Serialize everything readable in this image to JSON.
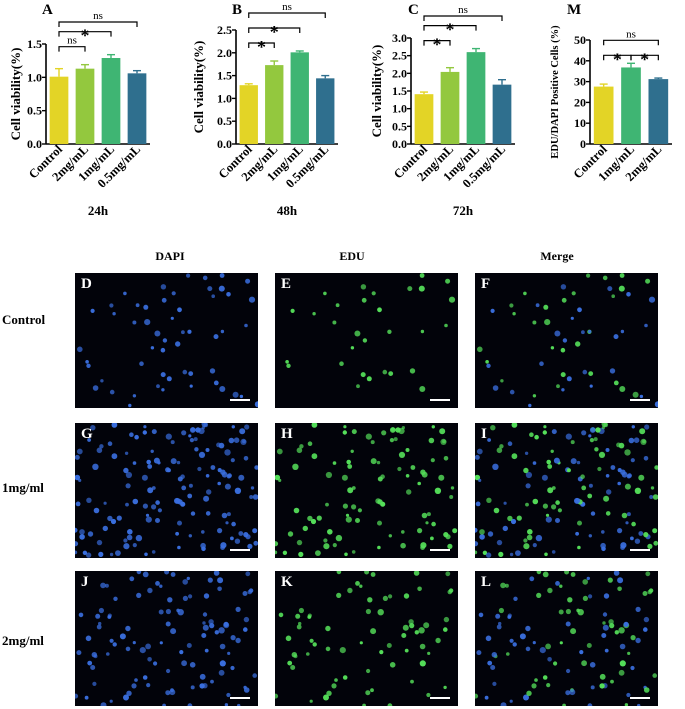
{
  "chart_data": [
    {
      "panel": "A",
      "type": "bar",
      "categories": [
        "Control",
        "2mg/mL",
        "1mg/mL",
        "0.5mg/mL"
      ],
      "values": [
        1.01,
        1.13,
        1.29,
        1.06
      ],
      "errors": [
        0.12,
        0.06,
        0.05,
        0.04
      ],
      "colors": [
        "#e3d426",
        "#93c83e",
        "#3fb573",
        "#2f6f8e"
      ],
      "ylabel": "Cell viability(%)",
      "xlabel": "24h",
      "ylim": [
        0,
        1.5
      ],
      "yticks": [
        "0.0",
        "0.5",
        "1.0",
        "1.5"
      ],
      "ytick_values": [
        0,
        0.5,
        1.0,
        1.5
      ],
      "significance": [
        {
          "from": 0,
          "to": 1,
          "label": "ns"
        },
        {
          "from": 0,
          "to": 2,
          "label": "*"
        },
        {
          "from": 0,
          "to": 3,
          "label": "ns"
        }
      ]
    },
    {
      "panel": "B",
      "type": "bar",
      "categories": [
        "Control",
        "2mg/mL",
        "1mg/mL",
        "0.5mg/mL"
      ],
      "values": [
        1.29,
        1.73,
        2.01,
        1.44
      ],
      "errors": [
        0.03,
        0.09,
        0.03,
        0.06
      ],
      "colors": [
        "#e3d426",
        "#93c83e",
        "#3fb573",
        "#2f6f8e"
      ],
      "ylabel": "Cell viability(%)",
      "xlabel": "48h",
      "ylim": [
        0,
        2.5
      ],
      "yticks": [
        "0.0",
        "0.5",
        "1.0",
        "1.5",
        "2.0",
        "2.5"
      ],
      "ytick_values": [
        0,
        0.5,
        1.0,
        1.5,
        2.0,
        2.5
      ],
      "significance": [
        {
          "from": 0,
          "to": 1,
          "label": "*"
        },
        {
          "from": 0,
          "to": 2,
          "label": "*"
        },
        {
          "from": 0,
          "to": 3,
          "label": "ns"
        }
      ]
    },
    {
      "panel": "C",
      "type": "bar",
      "categories": [
        "Control",
        "2mg/mL",
        "1mg/mL",
        "0.5mg/mL"
      ],
      "values": [
        1.41,
        2.04,
        2.6,
        1.68
      ],
      "errors": [
        0.06,
        0.12,
        0.1,
        0.14
      ],
      "colors": [
        "#e3d426",
        "#93c83e",
        "#3fb573",
        "#2f6f8e"
      ],
      "ylabel": "Cell viability(%)",
      "xlabel": "72h",
      "ylim": [
        0,
        3.0
      ],
      "yticks": [
        "0.0",
        "0.5",
        "1.0",
        "1.5",
        "2.0",
        "2.5",
        "3.0"
      ],
      "ytick_values": [
        0,
        0.5,
        1.0,
        1.5,
        2.0,
        2.5,
        3.0
      ],
      "significance": [
        {
          "from": 0,
          "to": 1,
          "label": "*"
        },
        {
          "from": 0,
          "to": 2,
          "label": "*"
        },
        {
          "from": 0,
          "to": 3,
          "label": "ns"
        }
      ]
    },
    {
      "panel": "M",
      "type": "bar",
      "categories": [
        "Control",
        "1mg/mL",
        "2mg/mL"
      ],
      "values": [
        27.6,
        36.8,
        31.2
      ],
      "errors": [
        1.2,
        2.0,
        0.5
      ],
      "colors": [
        "#e3d426",
        "#3fb573",
        "#2f6f8e"
      ],
      "ylabel": "EDU/DAPI Positive Cells (%)",
      "xlabel": "",
      "ylim": [
        0,
        50
      ],
      "yticks": [
        "0",
        "10",
        "20",
        "30",
        "40",
        "50"
      ],
      "ytick_values": [
        0,
        10,
        20,
        30,
        40,
        50
      ],
      "significance": [
        {
          "from": 0,
          "to": 1,
          "label": "*"
        },
        {
          "from": 1,
          "to": 2,
          "label": "*"
        },
        {
          "from": 0,
          "to": 2,
          "label": "ns"
        }
      ]
    }
  ],
  "micrographs": {
    "columns": [
      "DAPI",
      "EDU",
      "Merge"
    ],
    "rows": [
      "Control",
      "1mg/ml",
      "2mg/ml"
    ],
    "panel_letters": [
      [
        "D",
        "E",
        "F"
      ],
      [
        "G",
        "H",
        "I"
      ],
      [
        "J",
        "K",
        "L"
      ]
    ],
    "colors": {
      "dapi": "#3a6fe0",
      "edu": "#55e05a",
      "background": "#02030a"
    },
    "cell_density": [
      [
        55,
        30,
        55
      ],
      [
        150,
        100,
        150
      ],
      [
        110,
        70,
        110
      ]
    ]
  }
}
